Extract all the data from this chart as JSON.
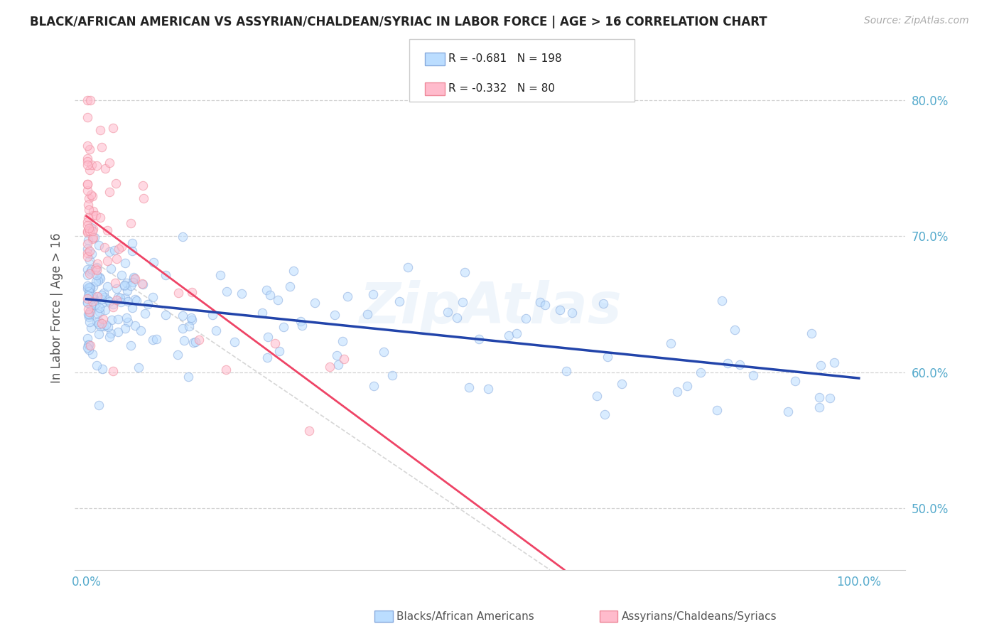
{
  "title": "BLACK/AFRICAN AMERICAN VS ASSYRIAN/CHALDEAN/SYRIAC IN LABOR FORCE | AGE > 16 CORRELATION CHART",
  "source": "Source: ZipAtlas.com",
  "ylabel": "In Labor Force | Age > 16",
  "blue_R": -0.681,
  "blue_N": 198,
  "pink_R": -0.332,
  "pink_N": 80,
  "blue_scatter_face": "#BBDDFF",
  "blue_scatter_edge": "#88AADD",
  "pink_scatter_face": "#FFBBCC",
  "pink_scatter_edge": "#EE8899",
  "blue_line_color": "#2244AA",
  "pink_line_color": "#EE4466",
  "gray_dash_color": "#CCCCCC",
  "legend_label_blue": "Blacks/African Americans",
  "legend_label_pink": "Assyrians/Chaldeans/Syriacs",
  "ytick_labels": [
    "50.0%",
    "60.0%",
    "70.0%",
    "80.0%"
  ],
  "ytick_vals": [
    0.5,
    0.6,
    0.7,
    0.8
  ],
  "xtick_labels": [
    "0.0%",
    "",
    "",
    "",
    "100.0%"
  ],
  "xtick_vals": [
    0.0,
    0.25,
    0.5,
    0.75,
    1.0
  ],
  "xlim": [
    -0.015,
    1.06
  ],
  "ylim": [
    0.455,
    0.84
  ],
  "blue_seed": 42,
  "pink_seed": 99,
  "watermark": "ZipAtlas",
  "tick_color": "#55AACC",
  "grid_color": "#CCCCCC",
  "title_fontsize": 12,
  "source_fontsize": 10,
  "ylabel_fontsize": 12,
  "tick_fontsize": 12,
  "legend_fontsize": 11,
  "scatter_size": 80,
  "scatter_alpha": 0.55,
  "scatter_lw": 0.8
}
